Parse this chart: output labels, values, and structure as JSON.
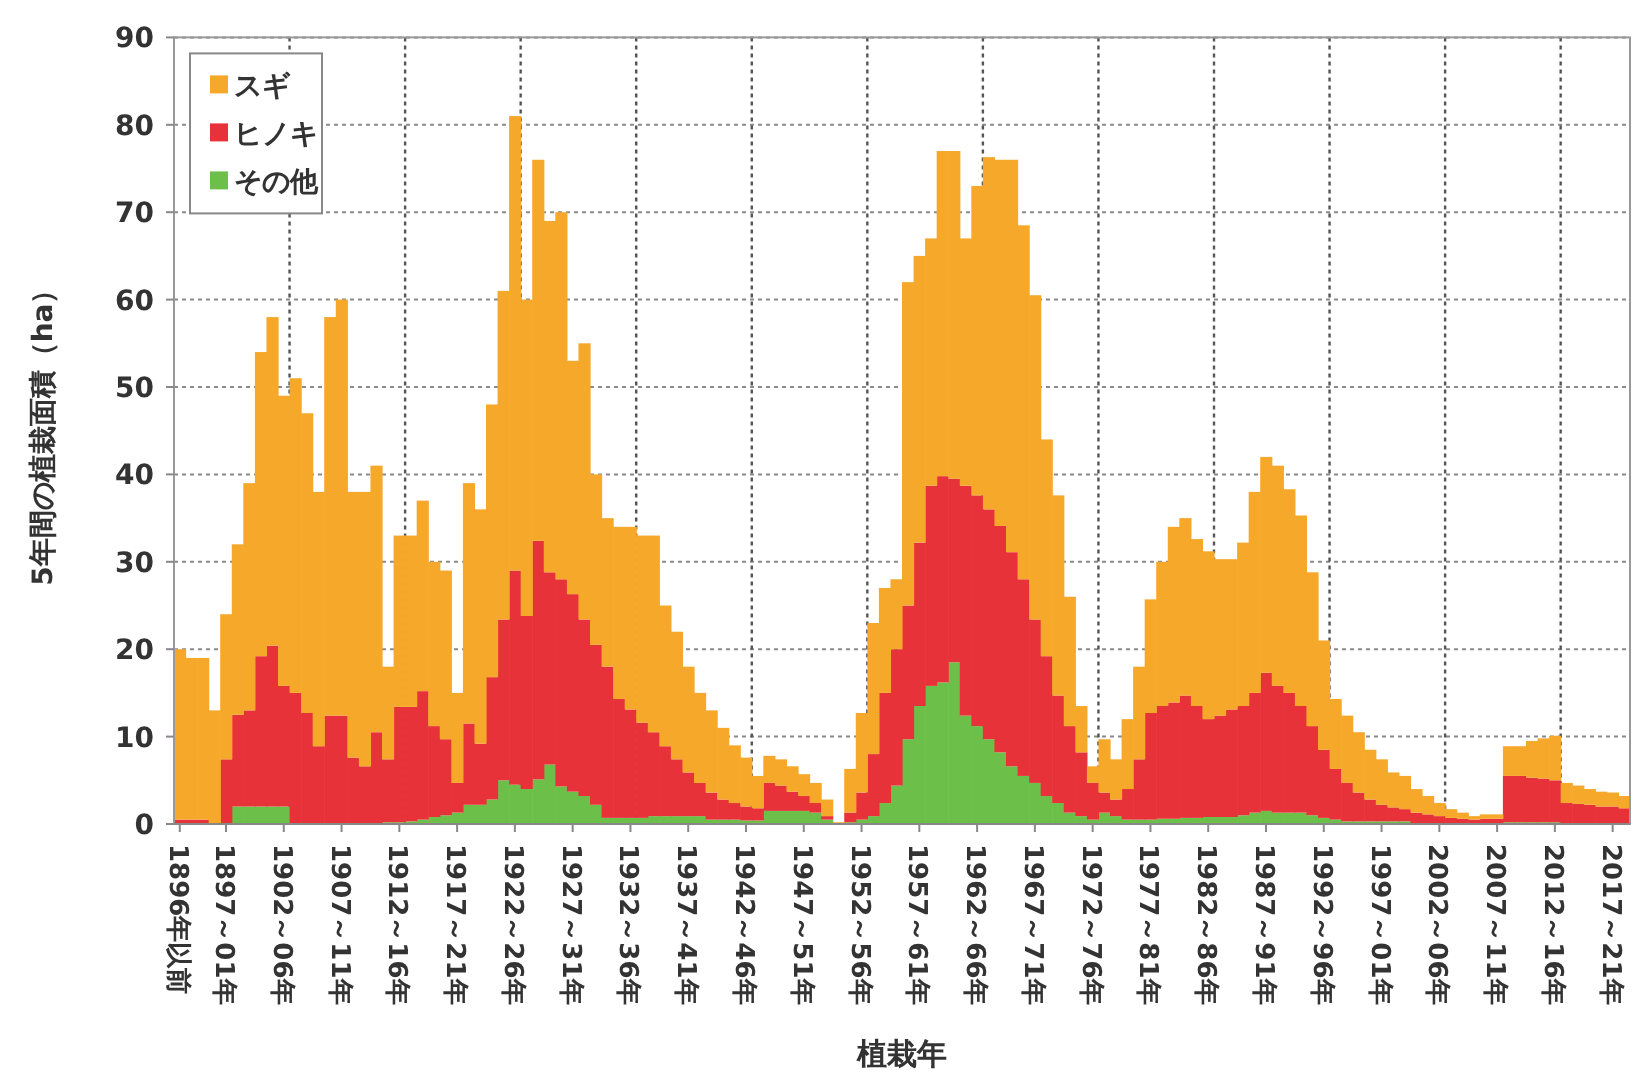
{
  "chart_data": {
    "type": "bar",
    "stacked": true,
    "xlabel": "植栽年",
    "ylabel": "5年間の植栽面積（ha）",
    "ylim": [
      0,
      90
    ],
    "yticks": [
      0,
      10,
      20,
      30,
      40,
      50,
      60,
      70,
      80,
      90
    ],
    "grid": true,
    "legend": "top left",
    "categories": [
      "1896年以前",
      null,
      null,
      null,
      "1897～01年",
      null,
      null,
      null,
      null,
      "1902～06年",
      null,
      null,
      null,
      null,
      "1907～11年",
      null,
      null,
      null,
      null,
      "1912～16年",
      null,
      null,
      null,
      null,
      "1917～21年",
      null,
      null,
      null,
      null,
      "1922～26年",
      null,
      null,
      null,
      null,
      "1927～31年",
      null,
      null,
      null,
      null,
      "1932～36年",
      null,
      null,
      null,
      null,
      "1937～41年",
      null,
      null,
      null,
      null,
      "1942～46年",
      null,
      null,
      null,
      null,
      "1947～51年",
      null,
      null,
      null,
      null,
      "1952～56年",
      null,
      null,
      null,
      null,
      "1957～61年",
      null,
      null,
      null,
      null,
      "1962～66年",
      null,
      null,
      null,
      null,
      "1967～71年",
      null,
      null,
      null,
      null,
      "1972～76年",
      null,
      null,
      null,
      null,
      "1977～81年",
      null,
      null,
      null,
      null,
      "1982～86年",
      null,
      null,
      null,
      null,
      "1987～91年",
      null,
      null,
      null,
      null,
      "1992～96年",
      null,
      null,
      null,
      null,
      "1997～01年",
      null,
      null,
      null,
      null,
      "2002～06年",
      null,
      null,
      null,
      null,
      "2007～11年",
      null,
      null,
      null,
      null,
      "2012～16年",
      null,
      null,
      null,
      null,
      "2017～21年",
      null
    ],
    "series": [
      {
        "name": "その他",
        "color": "#6cc04a",
        "values": [
          0,
          0,
          0,
          0,
          0,
          2,
          2,
          2,
          2,
          2,
          0,
          0,
          0,
          0,
          0,
          0,
          0,
          0,
          0.2,
          0.2,
          0.3,
          0.5,
          0.8,
          1,
          1.3,
          2.2,
          2.2,
          2.8,
          5,
          4.5,
          4,
          5.1,
          6.8,
          4.3,
          3.7,
          3.2,
          2.2,
          0.7,
          0.7,
          0.7,
          0.7,
          0.9,
          0.9,
          0.9,
          0.9,
          0.9,
          0.5,
          0.5,
          0.5,
          0.4,
          0.4,
          1.5,
          1.5,
          1.5,
          1.5,
          1.3,
          0.5,
          0,
          0.2,
          0.5,
          0.9,
          2.4,
          4.4,
          9.7,
          13.5,
          15.8,
          16.2,
          18.5,
          12.4,
          11.2,
          9.7,
          8.2,
          6.6,
          5.5,
          4.7,
          3.2,
          2.4,
          1.3,
          0.9,
          0.5,
          1.3,
          0.9,
          0.5,
          0.5,
          0.5,
          0.6,
          0.6,
          0.7,
          0.7,
          0.8,
          0.8,
          0.8,
          1,
          1.3,
          1.5,
          1.3,
          1.3,
          1.3,
          1,
          0.7,
          0.5,
          0.3,
          0.3,
          0.3,
          0.3,
          0.3,
          0.3,
          0.1,
          0.1,
          0.1,
          0.1,
          0.1,
          0.1,
          0.1,
          0.1,
          0.2,
          0.2,
          0.2,
          0.2,
          0.2,
          0.1,
          0.1,
          0.1,
          0.1,
          0.1,
          0.1
        ]
      },
      {
        "name": "ヒノキ",
        "color": "#e8323a",
        "values": [
          0.5,
          0.5,
          0.5,
          0,
          7.4,
          10.5,
          11,
          17.2,
          18.4,
          13.8,
          15,
          12.7,
          8.9,
          12.4,
          12.4,
          7.6,
          6.6,
          10.5,
          7.2,
          13.2,
          13.1,
          14.7,
          10.4,
          8.7,
          3.4,
          9.3,
          7,
          14,
          18.4,
          24.5,
          19.8,
          27.3,
          22,
          23.7,
          22.6,
          20.2,
          18.3,
          17.3,
          13.6,
          12.4,
          10.9,
          9.6,
          8,
          6.5,
          5,
          3.8,
          3.1,
          2.3,
          1.9,
          1.6,
          1.4,
          3.2,
          2.9,
          2.2,
          1.7,
          1.1,
          0.4,
          0,
          1.1,
          3.1,
          7.1,
          12.6,
          15.6,
          15.3,
          18.7,
          22.9,
          23.6,
          21,
          26.3,
          26.4,
          26.3,
          25.9,
          24.5,
          22.5,
          18.7,
          16,
          12.3,
          9.9,
          7.3,
          4.2,
          2.3,
          1.9,
          3.5,
          6.9,
          12.2,
          12.9,
          13.3,
          14,
          12.8,
          11.2,
          11.6,
          12.3,
          12.5,
          13.7,
          15.8,
          14.5,
          13.7,
          12.2,
          10.2,
          7.8,
          5.8,
          4.4,
          3.3,
          2.5,
          1.9,
          1.6,
          1.4,
          1.2,
          1,
          0.8,
          0.6,
          0.5,
          0.4,
          0.5,
          0.5,
          5.3,
          5.3,
          5.1,
          5,
          4.8,
          2.3,
          2.2,
          2.1,
          1.9,
          1.9,
          1.7
        ]
      },
      {
        "name": "スギ",
        "color": "#f6a82a",
        "values": [
          19.5,
          18.5,
          18.5,
          13,
          16.6,
          19.5,
          26,
          34.8,
          37.6,
          33.2,
          36,
          34.3,
          29.1,
          45.6,
          47.6,
          30.4,
          31.4,
          30.5,
          10.6,
          19.6,
          19.6,
          21.8,
          18.8,
          19.3,
          10.3,
          27.5,
          26.8,
          31.2,
          37.6,
          52,
          36.2,
          43.6,
          40.2,
          42,
          26.7,
          31.6,
          19.5,
          17,
          19.7,
          20.9,
          21.4,
          22.5,
          16.1,
          14.6,
          12.1,
          10.3,
          9.4,
          8.2,
          6.6,
          5.6,
          3.7,
          3.1,
          3,
          2.9,
          2.5,
          2.3,
          1.9,
          0.2,
          5,
          9.1,
          15,
          12,
          8,
          37,
          32.8,
          28.3,
          37.2,
          37.5,
          28.3,
          35.4,
          40.3,
          41.9,
          44.9,
          40.5,
          37.1,
          24.8,
          22.9,
          14.8,
          5.3,
          1.9,
          6.1,
          4.6,
          8,
          10.6,
          13,
          16.5,
          20.1,
          20.3,
          19.1,
          19.2,
          17.9,
          17.2,
          18.7,
          23,
          24.7,
          25.2,
          23.3,
          21.8,
          17.6,
          12.5,
          8,
          7.7,
          6.9,
          5.7,
          5.2,
          4,
          3.8,
          2.7,
          2.1,
          1.5,
          1,
          0.7,
          0.4,
          0.5,
          0.5,
          3.4,
          3.4,
          4.2,
          4.6,
          5.1,
          2.3,
          2.1,
          1.8,
          1.7,
          1.6,
          1.4
        ]
      }
    ]
  }
}
